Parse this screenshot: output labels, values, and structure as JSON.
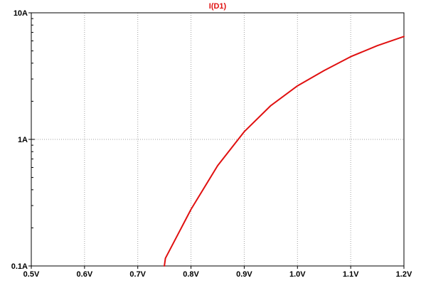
{
  "colors": {
    "background": "#ffffff",
    "axis": "#000000",
    "grid": "#a0a0a0",
    "trace": "#e01010",
    "title": "#e01010",
    "tick_label": "#000000"
  },
  "chart_data": {
    "type": "line",
    "title": "I(D1)",
    "xlabel": "",
    "ylabel": "",
    "xlim": [
      0.5,
      1.2
    ],
    "ylim": [
      0.1,
      10
    ],
    "yscale": "log",
    "grid": true,
    "x_ticks": [
      {
        "value": 0.5,
        "label": "0.5V"
      },
      {
        "value": 0.6,
        "label": "0.6V"
      },
      {
        "value": 0.7,
        "label": "0.7V"
      },
      {
        "value": 0.8,
        "label": "0.8V"
      },
      {
        "value": 0.9,
        "label": "0.9V"
      },
      {
        "value": 1.0,
        "label": "1.0V"
      },
      {
        "value": 1.1,
        "label": "1.1V"
      },
      {
        "value": 1.2,
        "label": "1.2V"
      }
    ],
    "y_ticks": [
      {
        "value": 0.1,
        "label": "0.1A"
      },
      {
        "value": 1,
        "label": "1A"
      },
      {
        "value": 10,
        "label": "10A"
      }
    ],
    "series": [
      {
        "name": "I(D1)",
        "x": [
          0.75,
          0.752,
          0.8,
          0.85,
          0.9,
          0.95,
          1.0,
          1.05,
          1.1,
          1.15,
          1.2
        ],
        "y": [
          0.1,
          0.115,
          0.28,
          0.62,
          1.15,
          1.85,
          2.65,
          3.5,
          4.5,
          5.5,
          6.5
        ]
      }
    ]
  }
}
